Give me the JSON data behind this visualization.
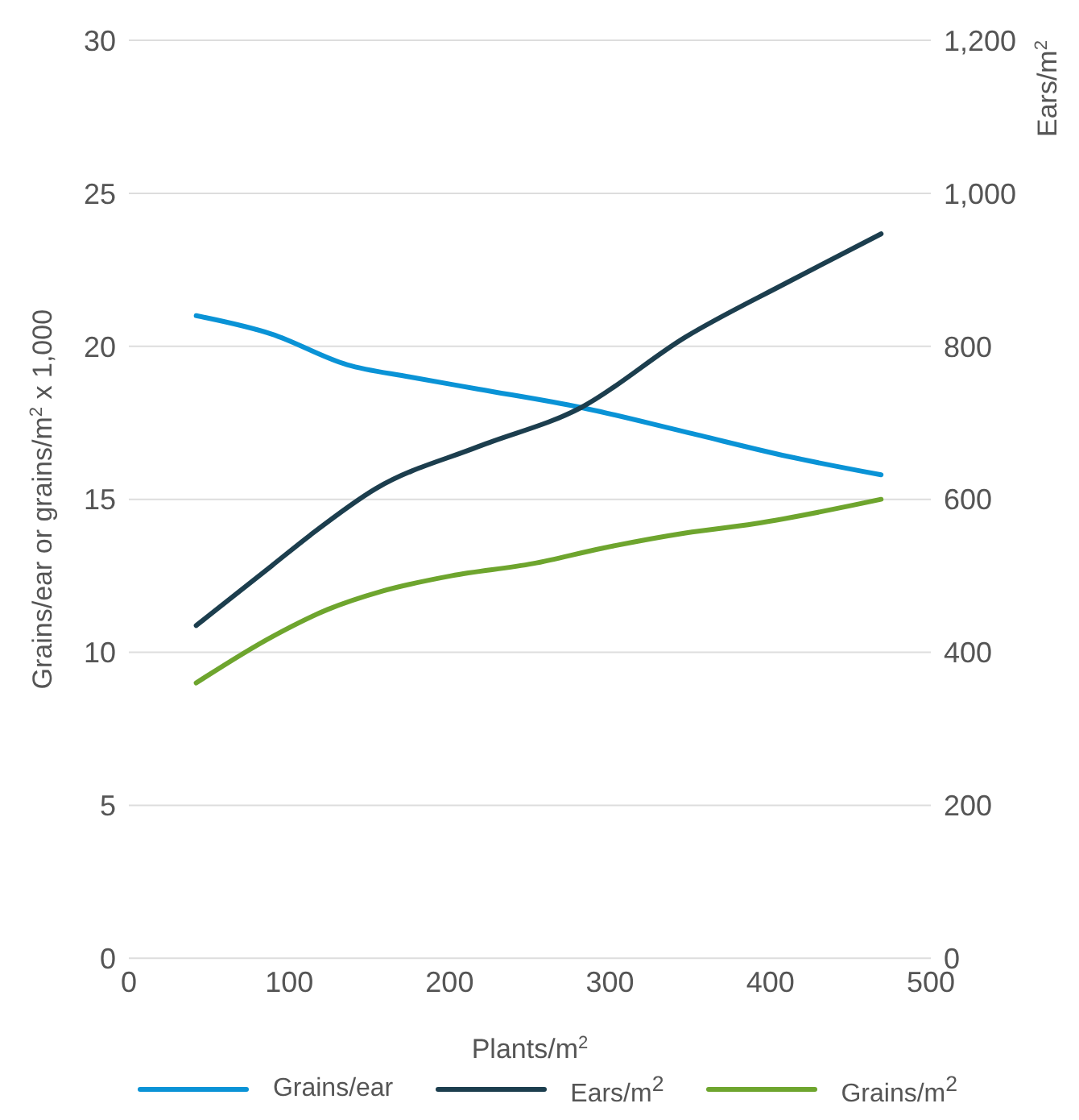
{
  "chart_data": {
    "type": "line",
    "xlabel": "Plants/m$^{2}$",
    "ylabel": "Grains/ear or grains/m$^{2}$ x 1,000",
    "y2label": "Ears/m$^{2}$",
    "xlim": [
      0,
      500
    ],
    "xticks": [
      0,
      100,
      200,
      300,
      400,
      500
    ],
    "ylim": [
      0,
      30
    ],
    "yticks": [
      0,
      5,
      10,
      15,
      20,
      25,
      30
    ],
    "y2lim": [
      0,
      1200
    ],
    "y2ticks": [
      0,
      {
        "value": 200,
        "label": "200"
      },
      {
        "value": 400,
        "label": "400"
      },
      {
        "value": 600,
        "label": "600"
      },
      {
        "value": 800,
        "label": "800"
      },
      {
        "value": 1000,
        "label": "1,000"
      },
      {
        "value": 1200,
        "label": "1,200"
      }
    ],
    "grid": "y",
    "legend": "bottom",
    "marker": "none",
    "line_style": "solid",
    "series": [
      {
        "name": "Grains/ear",
        "color": "#0a93d6",
        "x": [
          42,
          89,
          136,
          175,
          218,
          282,
          347,
          411,
          469
        ],
        "values": [
          21.0,
          20.4,
          19.4,
          19.0,
          18.6,
          18.0,
          17.2,
          16.4,
          15.8
        ]
      },
      {
        "name": "Ears/m$^{2}$",
        "color": "#1c3e4e",
        "axis": "y2",
        "x": [
          42,
          89,
          113,
          154,
          218,
          282,
          347,
          411,
          469
        ],
        "values": [
          435,
          513,
          553,
          614,
          669,
          720,
          812,
          884,
          947
        ]
      },
      {
        "name": "Grains/m$^{2}$",
        "color": "#6ea52e",
        "x": [
          42,
          89,
          124,
          158,
          201,
          252,
          295,
          347,
          390,
          469
        ],
        "values": [
          9.0,
          10.5,
          11.4,
          12.0,
          12.5,
          12.9,
          13.4,
          13.9,
          14.2,
          15.0
        ]
      }
    ]
  }
}
